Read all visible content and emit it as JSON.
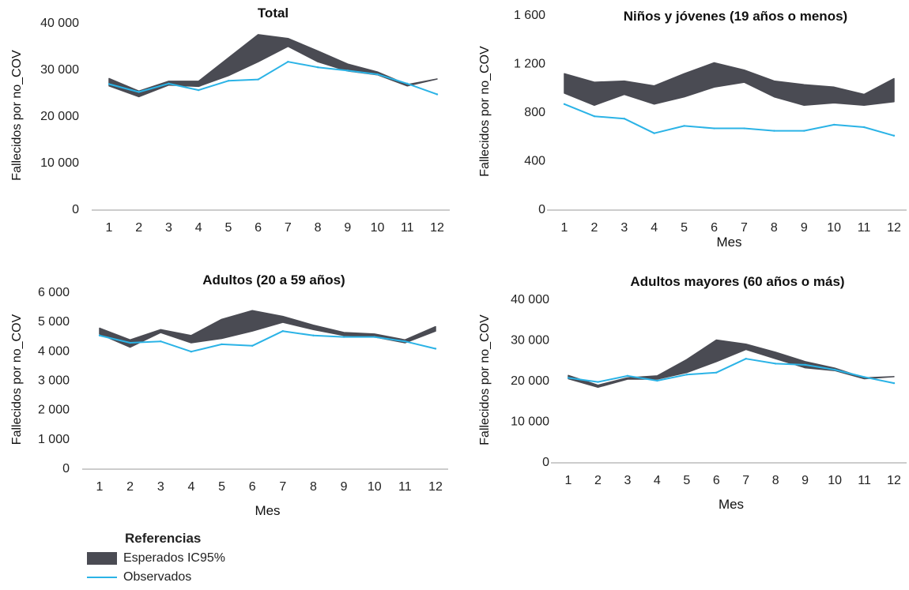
{
  "colors": {
    "band": "#4a4b53",
    "observed": "#2bb3e6",
    "axis": "#999999"
  },
  "chart_data": [
    {
      "type": "area",
      "title": "Total",
      "xlabel": "",
      "ylabel": "Fallecidos  por  no_COV",
      "x": [
        1,
        2,
        3,
        4,
        5,
        6,
        7,
        8,
        9,
        10,
        11,
        12
      ],
      "xticks": [
        "1",
        "2",
        "3",
        "4",
        "5",
        "6",
        "7",
        "8",
        "9",
        "10",
        "11",
        "12"
      ],
      "ylim": [
        0,
        40000
      ],
      "yticks": [
        0,
        10000,
        20000,
        30000,
        40000
      ],
      "ytick_labels": [
        "0",
        "10 000",
        "20 000",
        "30 000",
        "40 000"
      ],
      "series": [
        {
          "name": "Esperados IC95%",
          "kind": "band",
          "lower": [
            26300,
            24000,
            26500,
            26200,
            28500,
            31500,
            34800,
            31500,
            29500,
            28700,
            26300,
            27800
          ],
          "upper": [
            27900,
            25200,
            27300,
            27300,
            32300,
            37300,
            36500,
            33800,
            31000,
            29300,
            26600,
            27800
          ]
        },
        {
          "name": "Observados",
          "kind": "line",
          "values": [
            26700,
            25000,
            26800,
            25400,
            27400,
            27700,
            31500,
            30300,
            29600,
            28800,
            26800,
            24500
          ]
        }
      ]
    },
    {
      "type": "area",
      "title": "Niños y jóvenes (19 años o menos)",
      "xlabel": "Mes",
      "ylabel": "Fallecidos  por  no_COV",
      "x": [
        1,
        2,
        3,
        4,
        5,
        6,
        7,
        8,
        9,
        10,
        11,
        12
      ],
      "xticks": [
        "1",
        "2",
        "3",
        "4",
        "5",
        "6",
        "7",
        "8",
        "9",
        "10",
        "11",
        "12"
      ],
      "ylim": [
        0,
        1600
      ],
      "yticks": [
        0,
        400,
        800,
        1200,
        1600
      ],
      "ytick_labels": [
        "0",
        "400",
        "800",
        "1 200",
        "1 600"
      ],
      "series": [
        {
          "name": "Esperados IC95%",
          "kind": "band",
          "lower": [
            950,
            850,
            940,
            860,
            920,
            1000,
            1040,
            920,
            850,
            870,
            850,
            880
          ],
          "upper": [
            1110,
            1040,
            1050,
            1010,
            1110,
            1200,
            1140,
            1050,
            1020,
            1000,
            940,
            1070
          ]
        },
        {
          "name": "Observados",
          "kind": "line",
          "values": [
            860,
            760,
            740,
            620,
            680,
            660,
            660,
            640,
            640,
            690,
            670,
            600
          ]
        }
      ]
    },
    {
      "type": "area",
      "title": "Adultos (20 a 59 años)",
      "xlabel": "Mes",
      "ylabel": "Fallecidos  por  no_COV",
      "x": [
        1,
        2,
        3,
        4,
        5,
        6,
        7,
        8,
        9,
        10,
        11,
        12
      ],
      "xticks": [
        "1",
        "2",
        "3",
        "4",
        "5",
        "6",
        "7",
        "8",
        "9",
        "10",
        "11",
        "12"
      ],
      "ylim": [
        0,
        6000
      ],
      "yticks": [
        0,
        1000,
        2000,
        3000,
        4000,
        5000,
        6000
      ],
      "ytick_labels": [
        "0",
        "1 000",
        "2 000",
        "3 000",
        "4 000",
        "5 000",
        "6 000"
      ],
      "series": [
        {
          "name": "Esperados IC95%",
          "kind": "band",
          "lower": [
            4550,
            4100,
            4600,
            4250,
            4400,
            4650,
            4950,
            4700,
            4500,
            4450,
            4250,
            4650
          ],
          "upper": [
            4750,
            4350,
            4700,
            4500,
            5050,
            5350,
            5150,
            4850,
            4600,
            4550,
            4350,
            4800
          ]
        },
        {
          "name": "Observados",
          "kind": "line",
          "values": [
            4500,
            4250,
            4300,
            3950,
            4200,
            4150,
            4650,
            4500,
            4450,
            4450,
            4300,
            4050
          ]
        }
      ]
    },
    {
      "type": "area",
      "title": "Adultos mayores (60 años o más)",
      "xlabel": "Mes",
      "ylabel": "Fallecidos  por  no_COV",
      "x": [
        1,
        2,
        3,
        4,
        5,
        6,
        7,
        8,
        9,
        10,
        11,
        12
      ],
      "xticks": [
        "1",
        "2",
        "3",
        "4",
        "5",
        "6",
        "7",
        "8",
        "9",
        "10",
        "11",
        "12"
      ],
      "ylim": [
        0,
        40000
      ],
      "yticks": [
        0,
        10000,
        20000,
        30000,
        40000
      ],
      "ytick_labels": [
        "0",
        "10 000",
        "20 000",
        "30 000",
        "40 000"
      ],
      "series": [
        {
          "name": "Esperados IC95%",
          "kind": "band",
          "lower": [
            20300,
            18200,
            20200,
            20200,
            21800,
            24500,
            27500,
            25200,
            23000,
            22300,
            20300,
            20800
          ],
          "upper": [
            21100,
            18700,
            20500,
            21000,
            25000,
            29800,
            28800,
            26800,
            24500,
            22900,
            20500,
            20800
          ]
        },
        {
          "name": "Observados",
          "kind": "line",
          "values": [
            20500,
            19500,
            21000,
            19800,
            21300,
            21800,
            25200,
            24000,
            23700,
            22500,
            20700,
            19200
          ]
        }
      ]
    }
  ],
  "legend": {
    "title": "Referencias",
    "items": [
      "Esperados IC95%",
      "Observados"
    ]
  }
}
